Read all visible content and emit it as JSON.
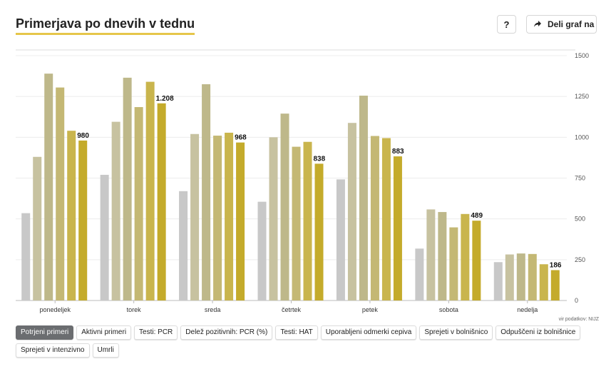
{
  "header": {
    "title": "Primerjava po dnevih v tednu",
    "help_label": "?",
    "share_label": "Deli graf na"
  },
  "source": "vir podatkov: NIJZ",
  "tabs": [
    {
      "label": "Potrjeni primeri",
      "active": true
    },
    {
      "label": "Aktivni primeri",
      "active": false
    },
    {
      "label": "Testi: PCR",
      "active": false
    },
    {
      "label": "Delež pozitivnih: PCR (%)",
      "active": false
    },
    {
      "label": "Testi: HAT",
      "active": false
    },
    {
      "label": "Uporabljeni odmerki cepiva",
      "active": false
    },
    {
      "label": "Sprejeti v bolnišnico",
      "active": false
    },
    {
      "label": "Odpuščeni iz bolnišnice",
      "active": false
    },
    {
      "label": "Sprejeti v intenzivno",
      "active": false
    },
    {
      "label": "Umrli",
      "active": false
    }
  ],
  "chart_data": {
    "type": "bar",
    "categories": [
      "ponedeljek",
      "torek",
      "sreda",
      "četrtek",
      "petek",
      "sobota",
      "nedelja"
    ],
    "series_colors": [
      "#c8c8c8",
      "#c7c2a0",
      "#beb88a",
      "#c4b874",
      "#c9b54d",
      "#c4ab2b"
    ],
    "values": [
      [
        535,
        880,
        1390,
        1305,
        1040,
        980
      ],
      [
        770,
        1095,
        1365,
        1185,
        1340,
        1208
      ],
      [
        670,
        1020,
        1325,
        1010,
        1028,
        968
      ],
      [
        605,
        1000,
        1145,
        942,
        972,
        838
      ],
      [
        742,
        1088,
        1255,
        1008,
        995,
        883
      ],
      [
        318,
        558,
        542,
        448,
        530,
        489
      ],
      [
        235,
        282,
        288,
        285,
        222,
        186
      ]
    ],
    "data_labels": [
      "980",
      "1.208",
      "968",
      "838",
      "883",
      "489",
      "186"
    ],
    "y_ticks": [
      0,
      250,
      500,
      750,
      1000,
      1250,
      1500
    ],
    "y_tick_labels": [
      "0",
      "250",
      "500",
      "750",
      "1000",
      "1250",
      "1500"
    ],
    "ylim": [
      0,
      1500
    ],
    "grid": true,
    "axis_position": "right"
  }
}
